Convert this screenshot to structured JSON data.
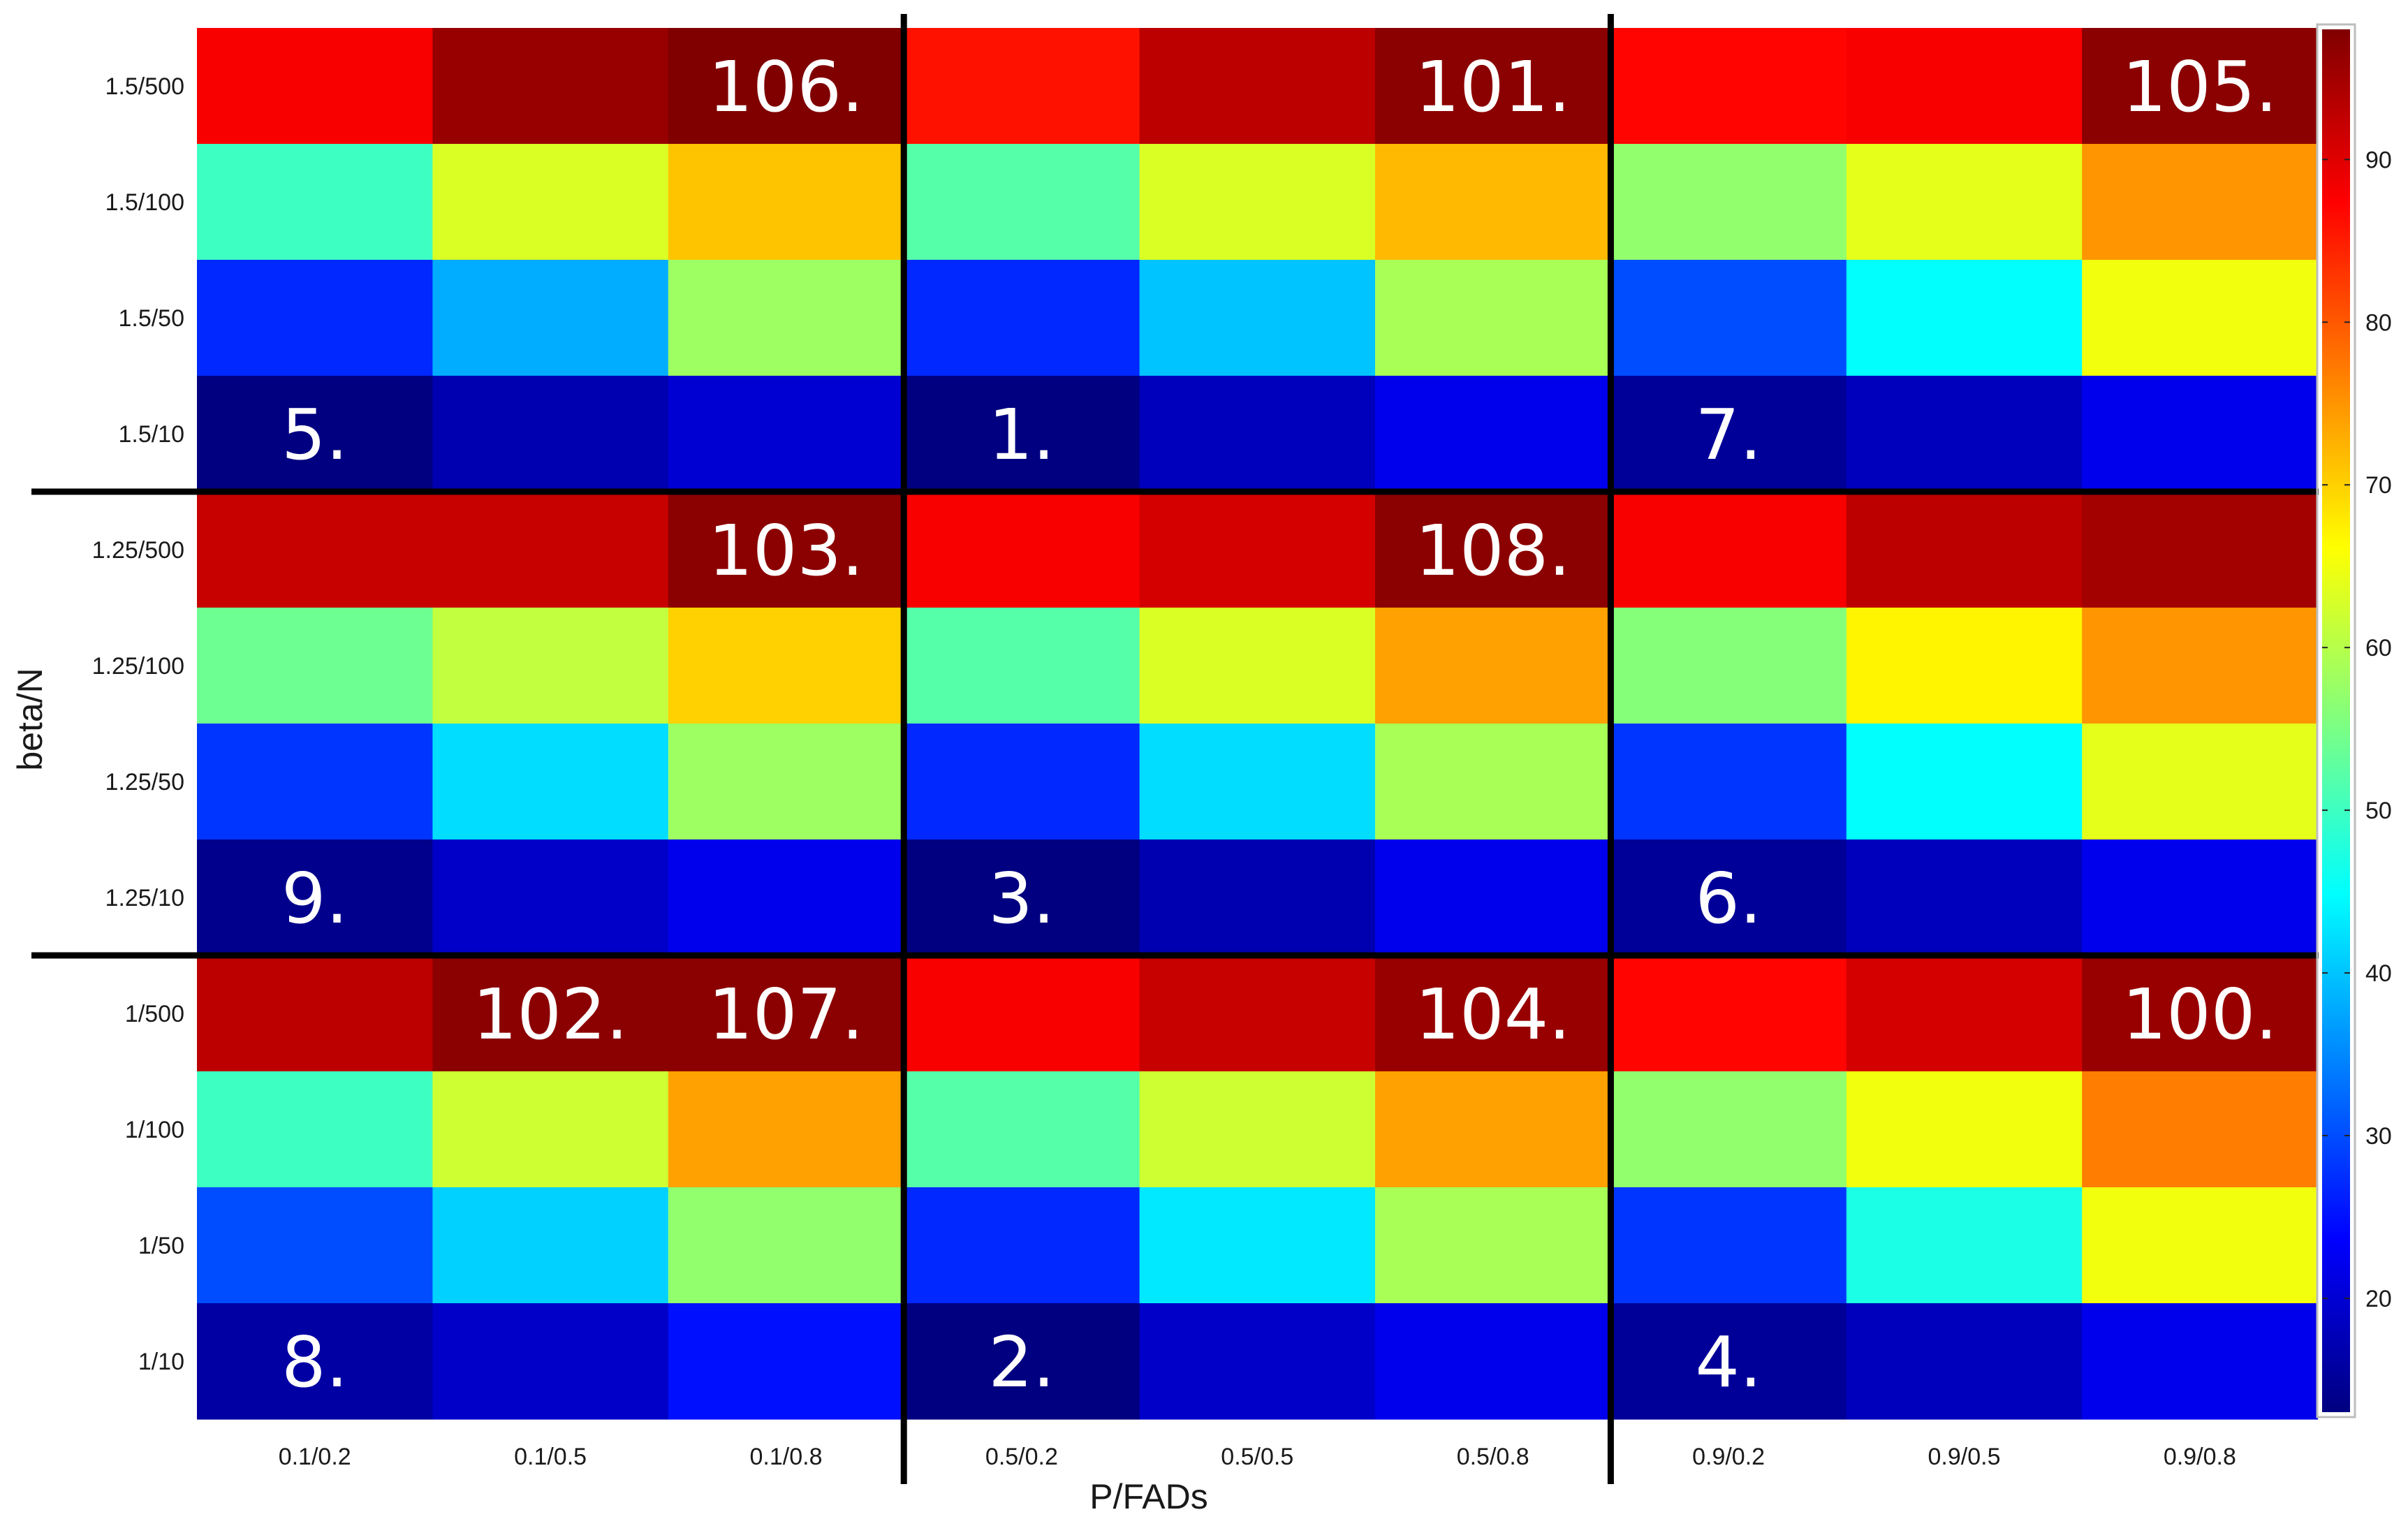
{
  "chart_data": {
    "type": "heatmap",
    "xlabel": "P/FADs",
    "ylabel": "beta/N",
    "x_categories": [
      "0.1/0.2",
      "0.1/0.5",
      "0.1/0.8",
      "0.5/0.2",
      "0.5/0.5",
      "0.5/0.8",
      "0.9/0.2",
      "0.9/0.5",
      "0.9/0.8"
    ],
    "y_categories": [
      "1.5/500",
      "1.5/100",
      "1.5/50",
      "1.5/10",
      "1.25/500",
      "1.25/100",
      "1.25/50",
      "1.25/10",
      "1/500",
      "1/100",
      "1/50",
      "1/10"
    ],
    "values": [
      [
        88,
        96,
        98,
        86,
        93,
        97,
        87,
        88,
        97
      ],
      [
        50,
        63,
        71,
        52,
        63,
        72,
        57,
        64,
        75
      ],
      [
        27,
        38,
        58,
        27,
        40,
        59,
        30,
        45,
        65
      ],
      [
        13,
        17,
        20,
        13,
        18,
        22,
        15,
        18,
        22
      ],
      [
        92,
        92,
        97,
        88,
        91,
        97,
        88,
        93,
        95
      ],
      [
        54,
        61,
        70,
        52,
        63,
        74,
        56,
        67,
        75
      ],
      [
        28,
        42,
        58,
        27,
        42,
        59,
        28,
        45,
        64
      ],
      [
        14,
        19,
        22,
        13,
        17,
        22,
        15,
        18,
        22
      ],
      [
        93,
        97,
        97,
        88,
        92,
        96,
        87,
        91,
        96
      ],
      [
        50,
        62,
        74,
        52,
        62,
        74,
        57,
        65,
        77
      ],
      [
        30,
        41,
        57,
        27,
        43,
        59,
        28,
        47,
        65
      ],
      [
        16,
        19,
        25,
        13,
        19,
        22,
        15,
        18,
        22
      ]
    ],
    "colorbar": {
      "colormap": "jet",
      "min": 13,
      "max": 98,
      "ticks": [
        20,
        30,
        40,
        50,
        60,
        70,
        80,
        90
      ]
    },
    "annotations": [
      {
        "row": 0,
        "col": 2,
        "text": "106."
      },
      {
        "row": 0,
        "col": 5,
        "text": "101."
      },
      {
        "row": 0,
        "col": 8,
        "text": "105."
      },
      {
        "row": 3,
        "col": 0,
        "text": "5."
      },
      {
        "row": 3,
        "col": 3,
        "text": "1."
      },
      {
        "row": 3,
        "col": 6,
        "text": "7."
      },
      {
        "row": 4,
        "col": 2,
        "text": "103."
      },
      {
        "row": 4,
        "col": 5,
        "text": "108."
      },
      {
        "row": 7,
        "col": 0,
        "text": "9."
      },
      {
        "row": 7,
        "col": 3,
        "text": "3."
      },
      {
        "row": 7,
        "col": 6,
        "text": "6."
      },
      {
        "row": 8,
        "col": 1,
        "text": "102."
      },
      {
        "row": 8,
        "col": 2,
        "text": "107."
      },
      {
        "row": 8,
        "col": 5,
        "text": "104."
      },
      {
        "row": 8,
        "col": 8,
        "text": "100."
      },
      {
        "row": 11,
        "col": 0,
        "text": "8."
      },
      {
        "row": 11,
        "col": 3,
        "text": "2."
      },
      {
        "row": 11,
        "col": 6,
        "text": "4."
      }
    ],
    "group_dividers": {
      "vertical_after_cols": [
        3,
        6
      ],
      "horizontal_after_rows": [
        4,
        8
      ]
    },
    "grid": false
  }
}
